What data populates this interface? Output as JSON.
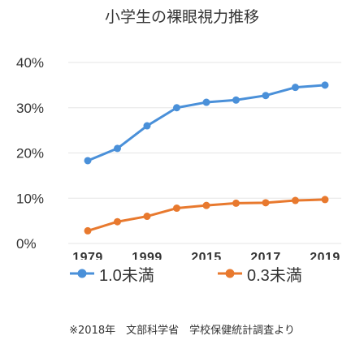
{
  "chart_data": {
    "type": "line",
    "title": "小学生の裸眼視力推移",
    "x_tick_labels": [
      "1979",
      "1999",
      "2015",
      "2017",
      "2019"
    ],
    "y_tick_labels": [
      "0%",
      "10%",
      "20%",
      "30%",
      "40%"
    ],
    "ylim": [
      0,
      40
    ],
    "grid": "horizontal",
    "legend_position": "bottom",
    "series": [
      {
        "name": "1.0未満",
        "color": "#4a90d9",
        "values": [
          18.3,
          21,
          26,
          30,
          31.2,
          31.7,
          32.7,
          34.5,
          35
        ]
      },
      {
        "name": "0.3未満",
        "color": "#e8792e",
        "values": [
          2.8,
          4.8,
          6,
          7.8,
          8.4,
          8.9,
          9,
          9.5,
          9.7
        ]
      }
    ]
  },
  "source_note": "※2018年　文部科学省　学校保健統計調査より"
}
